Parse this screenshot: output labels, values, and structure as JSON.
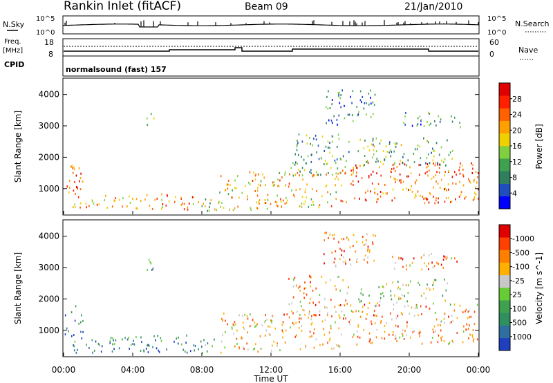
{
  "header": {
    "station": "Rankin Inlet (fitACF)",
    "beam": "Beam 09",
    "date": "21/Jan/2010"
  },
  "top_panels": {
    "nsky_label": "N.Sky",
    "nsearch_label": "N.Search",
    "nsky_ticks": [
      "10^5",
      "10^0"
    ],
    "freq_label": "Freq.",
    "freq_unit": "[MHz]",
    "freq_ticks": [
      "18",
      "8"
    ],
    "nave_label": "Nave",
    "nave_ticks": [
      "60",
      "0"
    ],
    "cpid_label": "CPID",
    "cpid_text": "normalsound (fast) 157"
  },
  "x_axis": {
    "label": "Time UT",
    "ticks": [
      "00:00",
      "04:00",
      "08:00",
      "12:00",
      "16:00",
      "20:00",
      "00:00"
    ]
  },
  "chart_data": [
    {
      "type": "heatmap",
      "name": "power",
      "ylabel": "Slant Range [km]",
      "yticks": [
        1000,
        2000,
        3000,
        4000
      ],
      "ylim": [
        180,
        4500
      ],
      "xlim": [
        0,
        24
      ],
      "colorbar": {
        "label": "Power [dB]",
        "ticks": [
          "4",
          "8",
          "12",
          "16",
          "20",
          "24",
          "28"
        ],
        "colors": [
          "#0000ff",
          "#1f4fbf",
          "#2f7f5f",
          "#3fa04f",
          "#7fcf3f",
          "#f0d000",
          "#ffa000",
          "#ff6000",
          "#ff2000",
          "#e00000"
        ]
      },
      "scatter_regions": [
        {
          "t0": 0.0,
          "t1": 1.1,
          "r0": 700,
          "r1": 1750,
          "level": 0.8
        },
        {
          "t0": 0.5,
          "t1": 4.0,
          "r0": 250,
          "r1": 750,
          "level": 0.6
        },
        {
          "t0": 4.0,
          "t1": 7.5,
          "r0": 250,
          "r1": 800,
          "level": 0.7
        },
        {
          "t0": 7.5,
          "t1": 9.0,
          "r0": 250,
          "r1": 750,
          "level": 0.5
        },
        {
          "t0": 9.0,
          "t1": 12.5,
          "r0": 250,
          "r1": 1500,
          "level": 0.6
        },
        {
          "t0": 12.5,
          "t1": 16.0,
          "r0": 350,
          "r1": 1500,
          "level": 0.6
        },
        {
          "t0": 13.0,
          "t1": 16.5,
          "r0": 1400,
          "r1": 2700,
          "level": 0.35
        },
        {
          "t0": 16.0,
          "t1": 24.0,
          "r0": 500,
          "r1": 1800,
          "level": 0.75
        },
        {
          "t0": 17.0,
          "t1": 22.5,
          "r0": 1700,
          "r1": 2600,
          "level": 0.4
        },
        {
          "t0": 4.8,
          "t1": 5.2,
          "r0": 2800,
          "r1": 3400,
          "level": 0.3
        },
        {
          "t0": 15.0,
          "t1": 18.0,
          "r0": 3000,
          "r1": 4100,
          "level": 0.25
        },
        {
          "t0": 19.0,
          "t1": 23.0,
          "r0": 2900,
          "r1": 3400,
          "level": 0.3
        }
      ]
    },
    {
      "type": "heatmap",
      "name": "velocity",
      "ylabel": "Slant Range [km]",
      "yticks": [
        1000,
        2000,
        3000,
        4000
      ],
      "ylim": [
        180,
        4500
      ],
      "xlim": [
        0,
        24
      ],
      "colorbar": {
        "label": "Velocity [m s^-1]",
        "ticks": [
          "1000",
          "500",
          "100",
          "25",
          "-25",
          "-100",
          "-500",
          "-1000"
        ],
        "colors": [
          "#1f3fbf",
          "#2f6f9f",
          "#2f8f5f",
          "#3fa04f",
          "#66cc33",
          "#c8c8c8",
          "#ffb000",
          "#ff8000",
          "#ff4000",
          "#e00000"
        ]
      },
      "scatter_regions": [
        {
          "t0": 0.0,
          "t1": 1.1,
          "r0": 700,
          "r1": 1750,
          "level": 0.2
        },
        {
          "t0": 0.5,
          "t1": 4.0,
          "r0": 250,
          "r1": 750,
          "level": 0.25
        },
        {
          "t0": 4.0,
          "t1": 7.5,
          "r0": 250,
          "r1": 800,
          "level": 0.2
        },
        {
          "t0": 7.5,
          "t1": 9.0,
          "r0": 250,
          "r1": 750,
          "level": 0.3
        },
        {
          "t0": 9.0,
          "t1": 12.5,
          "r0": 250,
          "r1": 1500,
          "level": 0.65
        },
        {
          "t0": 12.5,
          "t1": 16.0,
          "r0": 350,
          "r1": 1500,
          "level": 0.7
        },
        {
          "t0": 13.0,
          "t1": 16.5,
          "r0": 1400,
          "r1": 2700,
          "level": 0.7
        },
        {
          "t0": 16.0,
          "t1": 24.0,
          "r0": 500,
          "r1": 1800,
          "level": 0.7
        },
        {
          "t0": 17.0,
          "t1": 22.5,
          "r0": 1700,
          "r1": 2600,
          "level": 0.5
        },
        {
          "t0": 4.8,
          "t1": 5.2,
          "r0": 2800,
          "r1": 3400,
          "level": 0.3
        },
        {
          "t0": 15.0,
          "t1": 18.0,
          "r0": 3000,
          "r1": 4100,
          "level": 0.75
        },
        {
          "t0": 19.0,
          "t1": 23.0,
          "r0": 2900,
          "r1": 3400,
          "level": 0.7
        }
      ]
    }
  ]
}
